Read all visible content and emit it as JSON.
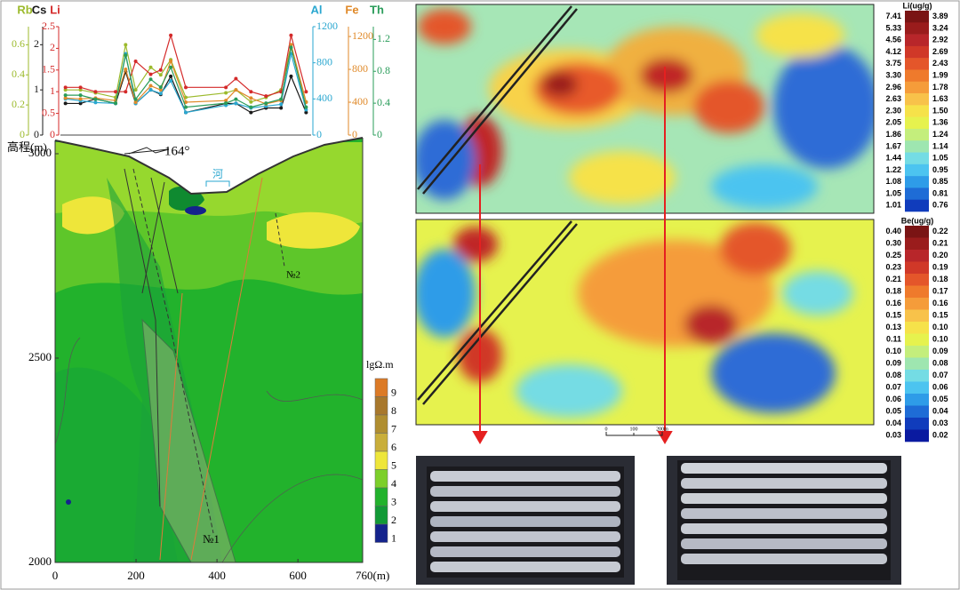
{
  "chart_data": [
    {
      "type": "line",
      "x": [
        2,
        8,
        14,
        22,
        26,
        30,
        36,
        40,
        44,
        50,
        66,
        70,
        76,
        82,
        88,
        92,
        98
      ],
      "xlim": [
        0,
        100
      ],
      "series": [
        {
          "name": "Rb",
          "color": "#9cba2c",
          "side": "left",
          "ylim": [
            0,
            0.72
          ],
          "yticks": [
            0,
            0.2,
            0.4,
            0.6
          ],
          "values": [
            0.3,
            0.3,
            0.28,
            0.25,
            0.6,
            0.3,
            0.45,
            0.4,
            0.5,
            0.25,
            0.28,
            0.3,
            0.22,
            0.25,
            0.3,
            0.6,
            0.22
          ]
        },
        {
          "name": "Cs",
          "color": "#1a1a1a",
          "side": "left",
          "ylim": [
            0,
            2.4
          ],
          "yticks": [
            0,
            1,
            2
          ],
          "values": [
            0.7,
            0.7,
            0.8,
            0.7,
            1.4,
            0.7,
            1.0,
            0.9,
            1.3,
            0.5,
            0.7,
            0.7,
            0.5,
            0.6,
            0.6,
            1.3,
            0.5
          ]
        },
        {
          "name": "Li",
          "color": "#d42a2a",
          "side": "left",
          "ylim": [
            0,
            2.5
          ],
          "yticks": [
            0,
            0.5,
            1,
            1.5,
            2,
            2.5
          ],
          "values": [
            1.1,
            1.1,
            1.0,
            1.0,
            1.0,
            1.7,
            1.4,
            1.5,
            2.3,
            1.1,
            1.1,
            1.3,
            1.0,
            0.9,
            1.0,
            2.3,
            1.0
          ]
        },
        {
          "name": "Al",
          "color": "#2aa7d0",
          "side": "right",
          "ylim": [
            0,
            1200
          ],
          "yticks": [
            0,
            400,
            800,
            1200
          ],
          "values": [
            400,
            380,
            360,
            350,
            900,
            350,
            500,
            460,
            600,
            250,
            330,
            350,
            300,
            320,
            340,
            900,
            280
          ]
        },
        {
          "name": "Fe",
          "color": "#e08a2a",
          "side": "right",
          "ylim": [
            0,
            1320
          ],
          "yticks": [
            0,
            400,
            800,
            1200
          ],
          "values": [
            450,
            440,
            450,
            420,
            800,
            400,
            600,
            550,
            900,
            400,
            420,
            550,
            450,
            380,
            420,
            1100,
            400
          ]
        },
        {
          "name": "Th",
          "color": "#2a9c5a",
          "side": "right",
          "ylim": [
            0,
            1.36
          ],
          "yticks": [
            0,
            0.4,
            0.8,
            1.2
          ],
          "values": [
            0.5,
            0.5,
            0.45,
            0.4,
            1.0,
            0.45,
            0.7,
            0.6,
            0.85,
            0.35,
            0.4,
            0.45,
            0.35,
            0.4,
            0.45,
            1.1,
            0.35
          ]
        }
      ]
    },
    {
      "type": "contour_section",
      "ylabel": "高程(m)",
      "xlim": [
        0,
        760
      ],
      "xticks": [
        0,
        200,
        400,
        600,
        {
          "value": 760,
          "label": "760(m)"
        }
      ],
      "ylim": [
        2000,
        3000
      ],
      "yticks": [
        2000,
        2500,
        3000
      ],
      "annotations": [
        "164°",
        "河",
        "№2",
        "№1"
      ],
      "legend": {
        "title": "lgΩ.m",
        "levels": [
          1,
          2,
          3,
          4,
          5,
          6,
          7,
          8,
          9
        ],
        "colors": [
          "#14238c",
          "#129a36",
          "#22b22c",
          "#7ccf2a",
          "#eee63a",
          "#c9ae3a",
          "#b08e30",
          "#a8782c",
          "#dc7a26"
        ]
      }
    }
  ],
  "maps": [
    {
      "colorbar_title": "Li(ug/g)",
      "labels_left": [
        "7.41",
        "5.33",
        "4.56",
        "4.12",
        "3.75",
        "3.30",
        "2.96",
        "2.63",
        "2.30",
        "2.05",
        "1.86",
        "1.67",
        "1.44",
        "1.22",
        "1.08",
        "1.05",
        "1.01"
      ],
      "labels_right": [
        "3.89",
        "3.24",
        "2.92",
        "2.69",
        "2.43",
        "1.99",
        "1.78",
        "1.63",
        "1.50",
        "1.36",
        "1.24",
        "1.14",
        "1.05",
        "0.95",
        "0.85",
        "0.81",
        "0.76"
      ],
      "colors": [
        "#7a1414",
        "#9a1c1c",
        "#b8262a",
        "#d03828",
        "#e4562a",
        "#ef7a2c",
        "#f59c3a",
        "#f8c24a",
        "#f6e24a",
        "#e6f24e",
        "#c4ee7c",
        "#9ee6b0",
        "#74dce4",
        "#4cc4f0",
        "#2e9ce8",
        "#1e6cd6",
        "#103cbc"
      ]
    },
    {
      "colorbar_title": "Be(ug/g)",
      "labels_left": [
        "0.40",
        "0.30",
        "0.25",
        "0.23",
        "0.21",
        "0.18",
        "0.16",
        "0.15",
        "0.13",
        "0.11",
        "0.10",
        "0.09",
        "0.08",
        "0.07",
        "0.06",
        "0.05",
        "0.04",
        "0.03"
      ],
      "labels_right": [
        "0.22",
        "0.21",
        "0.20",
        "0.19",
        "0.18",
        "0.17",
        "0.16",
        "0.15",
        "0.10",
        "0.10",
        "0.09",
        "0.08",
        "0.07",
        "0.06",
        "0.05",
        "0.04",
        "0.03",
        "0.02"
      ],
      "colors": [
        "#7a1414",
        "#9a1c1c",
        "#b8262a",
        "#d03828",
        "#e4562a",
        "#ef7a2c",
        "#f59c3a",
        "#f8c24a",
        "#f6e24a",
        "#e6f24e",
        "#c4ee7c",
        "#9ee6b0",
        "#74dce4",
        "#4cc4f0",
        "#2e9ce8",
        "#1e6cd6",
        "#103cbc",
        "#0a1aa0"
      ]
    }
  ],
  "scale_bar": {
    "labels": [
      "0",
      "100",
      "200m"
    ]
  }
}
